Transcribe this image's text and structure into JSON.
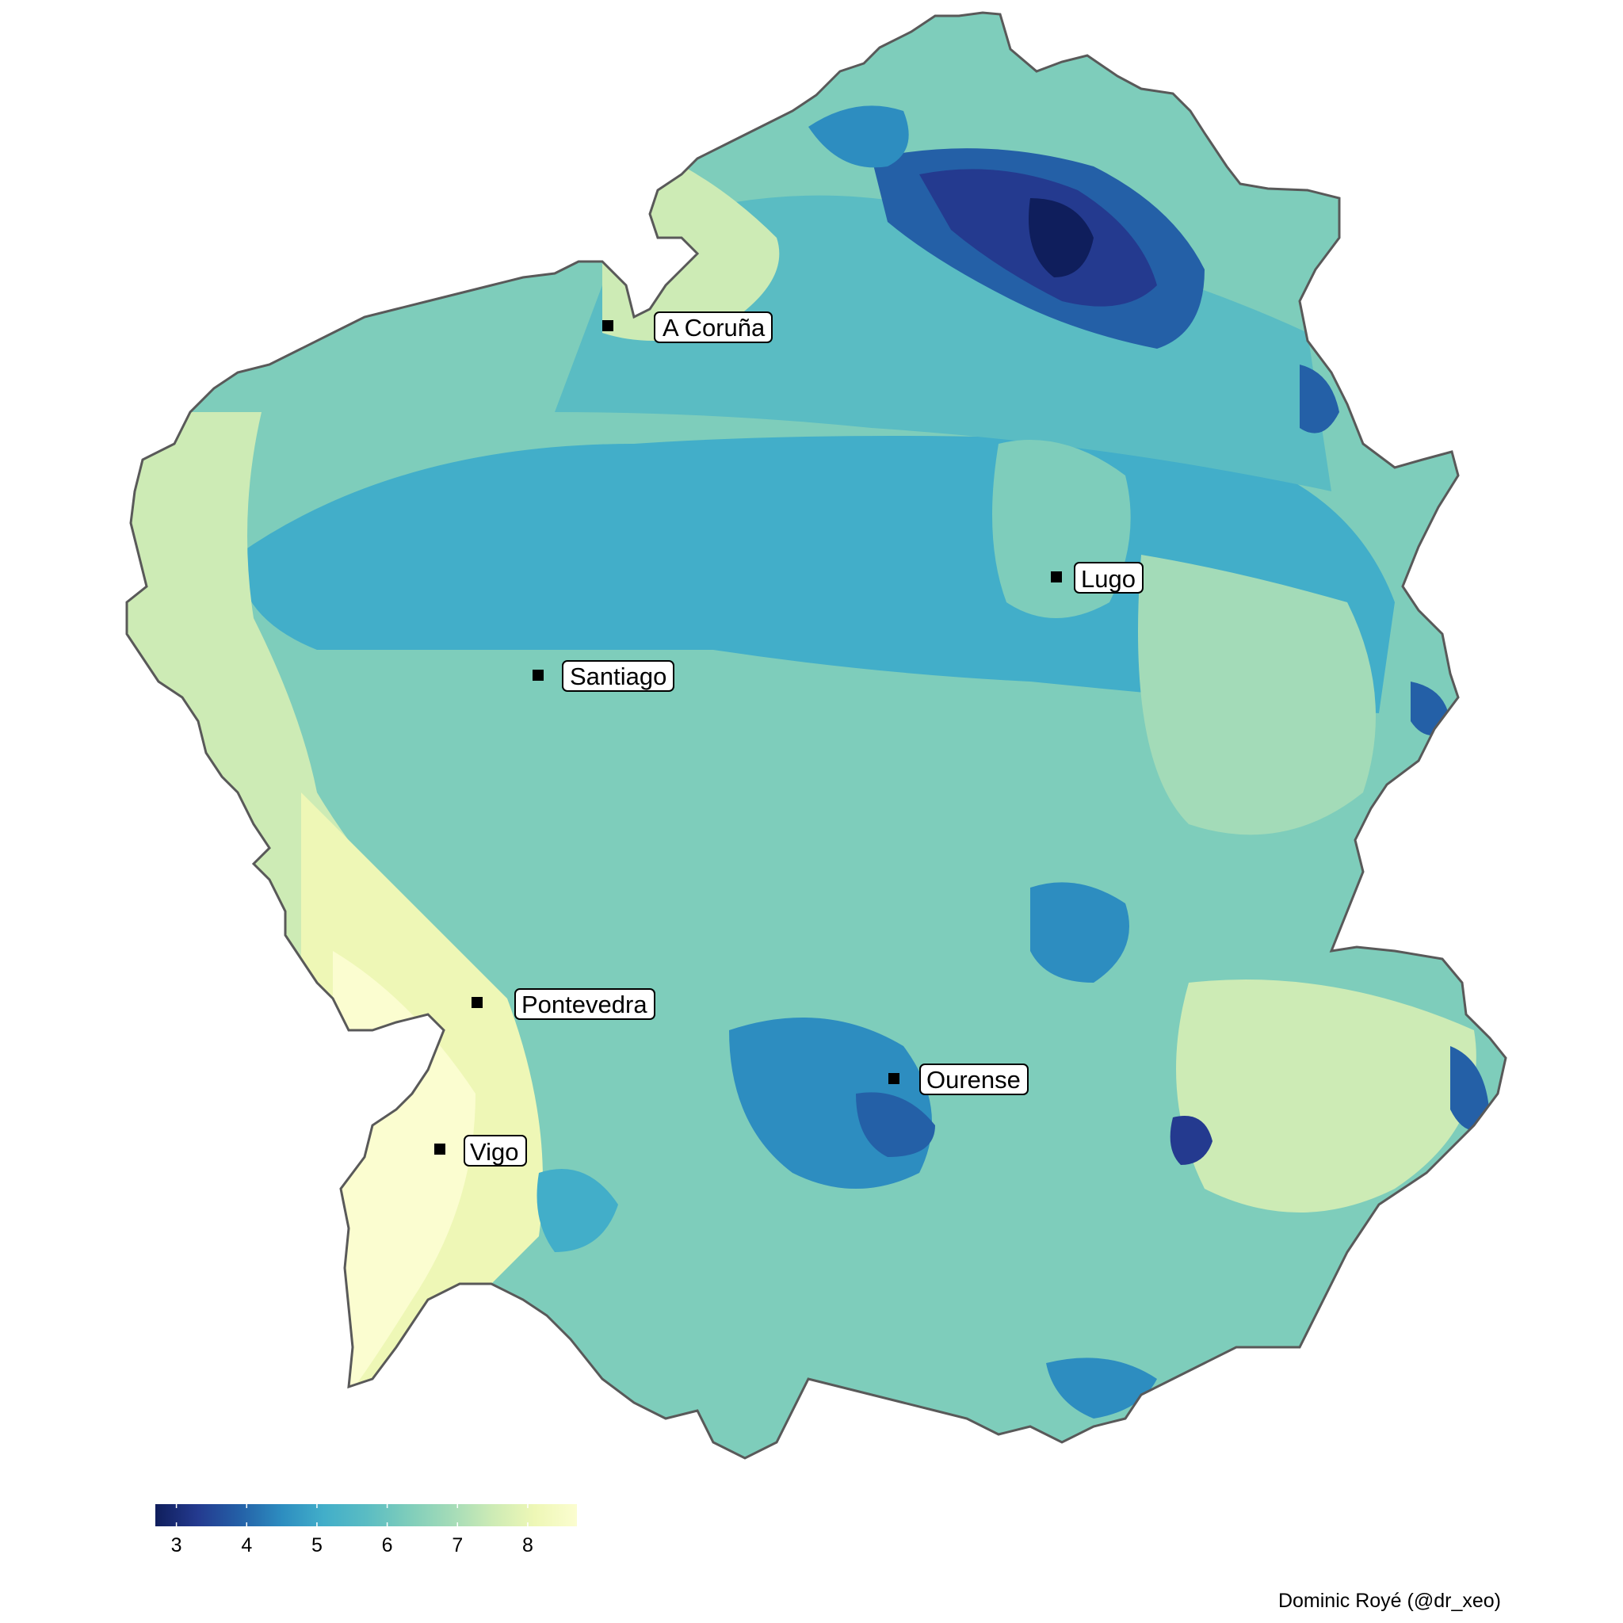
{
  "map": {
    "region_colors": {
      "very_light": "#fbfdd0",
      "light_yellow": "#eef7b6",
      "light_green": "#cdebb5",
      "mint": "#a3dbb8",
      "teal_light": "#7ecdbb",
      "teal": "#5abcc3",
      "blue_teal": "#42aec9",
      "blue": "#2d8dc0",
      "deep_blue": "#2460a7",
      "navy": "#243a8f",
      "darkest": "#0f1e5c",
      "border": "#595959"
    },
    "cities": [
      {
        "name": "A Coruña"
      },
      {
        "name": "Lugo"
      },
      {
        "name": "Santiago"
      },
      {
        "name": "Pontevedra"
      },
      {
        "name": "Ourense"
      },
      {
        "name": "Vigo"
      }
    ]
  },
  "legend": {
    "ticks": [
      "3",
      "4",
      "5",
      "6",
      "7",
      "8"
    ],
    "tick_values": [
      3,
      4,
      5,
      6,
      7,
      8
    ],
    "range": [
      2.7,
      8.7
    ],
    "palette": [
      "#0f1e5c",
      "#243a8f",
      "#2460a7",
      "#2d8dc0",
      "#42aec9",
      "#5abcc3",
      "#7ecdbb",
      "#a3dbb8",
      "#cdebb5",
      "#eef7b6",
      "#fbfdd0"
    ]
  },
  "caption": {
    "text": "Dominic Royé (@dr_xeo)"
  }
}
